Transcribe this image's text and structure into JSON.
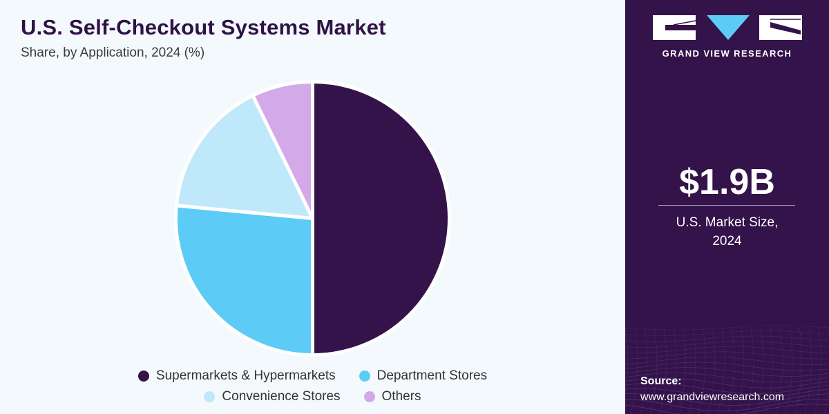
{
  "header": {
    "title": "U.S. Self-Checkout Systems Market",
    "subtitle": "Share, by Application, 2024 (%)"
  },
  "chart_data": {
    "type": "pie",
    "title": "U.S. Self-Checkout Systems Market",
    "subtitle": "Share, by Application, 2024 (%)",
    "categories": [
      "Supermarkets & Hypermarkets",
      "Department Stores",
      "Convenience Stores",
      "Others"
    ],
    "values": [
      50.0,
      26.5,
      16.3,
      7.2
    ],
    "colors": [
      "#33134a",
      "#5ccbf5",
      "#bfe9fb",
      "#d3a9ea"
    ],
    "legend_position": "bottom"
  },
  "legend": {
    "row1": [
      {
        "label": "Supermarkets & Hypermarkets",
        "color": "#33134a"
      },
      {
        "label": "Department Stores",
        "color": "#5ccbf5"
      }
    ],
    "row2": [
      {
        "label": "Convenience Stores",
        "color": "#bfe9fb"
      },
      {
        "label": "Others",
        "color": "#d3a9ea"
      }
    ]
  },
  "sidebar": {
    "logo_text": "GRAND VIEW RESEARCH",
    "market_value": "$1.9B",
    "market_label_line1": "U.S. Market Size,",
    "market_label_line2": "2024",
    "source_label": "Source:",
    "source_url": "www.grandviewresearch.com"
  }
}
